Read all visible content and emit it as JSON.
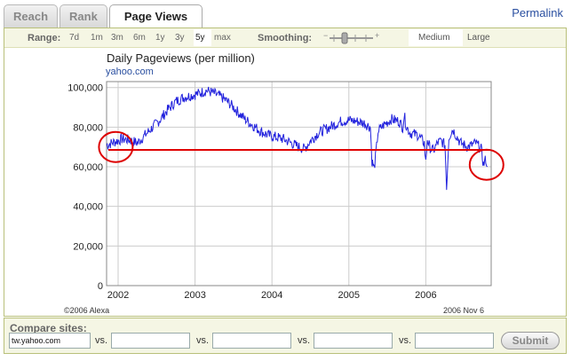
{
  "tabs": [
    {
      "label": "Reach",
      "active": false
    },
    {
      "label": "Rank",
      "active": false
    },
    {
      "label": "Page Views",
      "active": true
    }
  ],
  "permalink": "Permalink",
  "controls": {
    "range_label": "Range:",
    "range_options": [
      "7d",
      "1m",
      "3m",
      "6m",
      "1y",
      "3y",
      "5y",
      "max"
    ],
    "range_selected": "5y",
    "smoothing_label": "Smoothing:",
    "size_options": [
      "Medium",
      "Large"
    ],
    "size_selected": "Medium"
  },
  "chart": {
    "title": "Daily Pageviews (per million)",
    "subtitle": "yahoo.com",
    "copyright": "©2006 Alexa",
    "date_stamp": "2006 Nov 6",
    "colors": {
      "line": "#2222dd",
      "trend": "#e00000",
      "annotation": "#dd0000",
      "grid": "#cccccc"
    }
  },
  "chart_data": {
    "type": "line",
    "title": "Daily Pageviews (per million)",
    "subtitle": "yahoo.com",
    "xlabel": "",
    "ylabel": "",
    "x_ticks": [
      "2002",
      "2003",
      "2004",
      "2005",
      "2006"
    ],
    "y_ticks": [
      "0",
      "20,000",
      "40,000",
      "60,000",
      "80,000",
      "100,000"
    ],
    "xlim": [
      2001.85,
      2006.85
    ],
    "ylim": [
      0,
      103000
    ],
    "grid": true,
    "series": [
      {
        "x": [
          2001.85,
          2001.95,
          2002.05,
          2002.15,
          2002.25,
          2002.35,
          2002.45,
          2002.55,
          2002.65,
          2002.75,
          2002.85,
          2002.95,
          2003.05,
          2003.15,
          2003.25,
          2003.35,
          2003.45,
          2003.55,
          2003.65,
          2003.75,
          2003.85,
          2003.95,
          2004.05,
          2004.15,
          2004.25,
          2004.35,
          2004.42,
          2004.5,
          2004.6,
          2004.7,
          2004.8,
          2004.9,
          2005.0,
          2005.1,
          2005.2,
          2005.28,
          2005.3,
          2005.33,
          2005.36,
          2005.38,
          2005.45,
          2005.55,
          2005.65,
          2005.7,
          2005.72,
          2005.75,
          2005.8,
          2005.9,
          2005.98,
          2006.0,
          2006.02,
          2006.05,
          2006.1,
          2006.15,
          2006.2,
          2006.25,
          2006.27,
          2006.3,
          2006.35,
          2006.45,
          2006.55,
          2006.65,
          2006.72,
          2006.75,
          2006.78,
          2006.8
        ],
        "values": [
          71000,
          72500,
          74000,
          73500,
          72000,
          76000,
          80000,
          84000,
          89000,
          93000,
          95000,
          96000,
          97000,
          98500,
          97000,
          95000,
          92000,
          88000,
          84000,
          81000,
          78000,
          76000,
          75000,
          74000,
          72000,
          70000,
          69000,
          73000,
          77000,
          79000,
          81000,
          83000,
          83500,
          83000,
          82000,
          80000,
          63000,
          59000,
          70000,
          78000,
          81000,
          84000,
          83000,
          80000,
          86000,
          80000,
          77000,
          76000,
          72000,
          62000,
          74000,
          70000,
          68000,
          72000,
          73000,
          71000,
          49000,
          75000,
          79000,
          72000,
          70000,
          72000,
          69000,
          61000,
          64000,
          60000
        ]
      }
    ],
    "trend_line": {
      "value": 68500
    },
    "annotations": [
      {
        "type": "circle",
        "x": 2001.97,
        "y": 70000
      },
      {
        "type": "circle",
        "x": 2006.79,
        "y": 61000
      }
    ]
  },
  "compare": {
    "label": "Compare sites:",
    "inputs": [
      "tw.yahoo.com",
      "",
      "",
      "",
      ""
    ],
    "vs_label": "vs.",
    "submit_label": "Submit"
  }
}
